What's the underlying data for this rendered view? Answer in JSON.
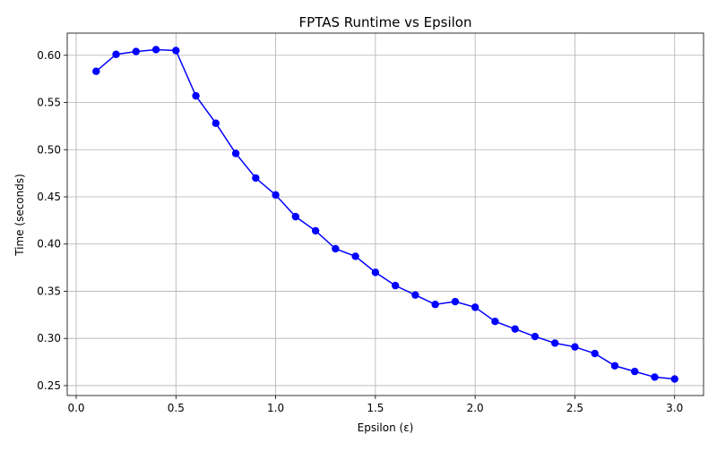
{
  "chart_data": {
    "type": "line",
    "title": "FPTAS Runtime vs Epsilon",
    "xlabel": "Epsilon (ε)",
    "ylabel": "Time (seconds)",
    "xlim": [
      -0.045,
      3.145
    ],
    "ylim": [
      0.2395,
      0.6235
    ],
    "grid": true,
    "line_color": "#0000ff",
    "marker_color": "#0000ff",
    "x_ticks": [
      0.0,
      0.5,
      1.0,
      1.5,
      2.0,
      2.5,
      3.0
    ],
    "x_tick_labels": [
      "0.0",
      "0.5",
      "1.0",
      "1.5",
      "2.0",
      "2.5",
      "3.0"
    ],
    "y_ticks": [
      0.25,
      0.3,
      0.35,
      0.4,
      0.45,
      0.5,
      0.55,
      0.6
    ],
    "y_tick_labels": [
      "0.25",
      "0.30",
      "0.35",
      "0.40",
      "0.45",
      "0.50",
      "0.55",
      "0.60"
    ],
    "series": [
      {
        "x": [
          0.1,
          0.2,
          0.3,
          0.4,
          0.5,
          0.6,
          0.7,
          0.8,
          0.9,
          1.0,
          1.1,
          1.2,
          1.3,
          1.4,
          1.5,
          1.6,
          1.7,
          1.8,
          1.9,
          2.0,
          2.1,
          2.2,
          2.3,
          2.4,
          2.5,
          2.6,
          2.7,
          2.8,
          2.9,
          3.0
        ],
        "values": [
          0.583,
          0.601,
          0.604,
          0.606,
          0.605,
          0.557,
          0.528,
          0.496,
          0.47,
          0.452,
          0.429,
          0.414,
          0.395,
          0.387,
          0.37,
          0.356,
          0.346,
          0.336,
          0.339,
          0.333,
          0.318,
          0.31,
          0.302,
          0.295,
          0.291,
          0.284,
          0.271,
          0.265,
          0.259,
          0.257
        ]
      }
    ]
  }
}
